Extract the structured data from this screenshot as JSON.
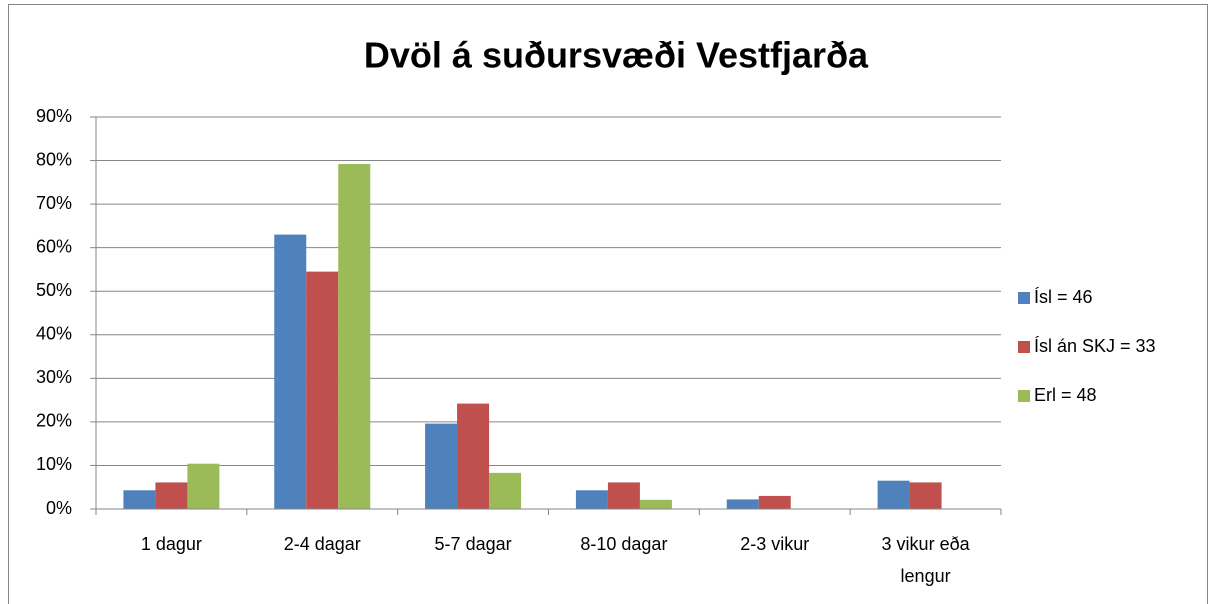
{
  "chart_data": {
    "type": "bar",
    "title": "Dvöl á suðursvæði Vestfjarða",
    "categories": [
      "1 dagur",
      "2-4 dagar",
      "5-7 dagar",
      "8-10 dagar",
      "2-3 vikur",
      "3 vikur eða lengur"
    ],
    "series": [
      {
        "name": "Ísl = 46",
        "color": "#4f81bd",
        "values": [
          4.3,
          63,
          19.6,
          4.3,
          2.2,
          6.5
        ]
      },
      {
        "name": "Ísl án SKJ = 33",
        "color": "#c0504d",
        "values": [
          6.1,
          54.5,
          24.2,
          6.1,
          3.0,
          6.1
        ]
      },
      {
        "name": "Erl = 48",
        "color": "#9bbb59",
        "values": [
          10.4,
          79.2,
          8.3,
          2.1,
          0,
          0
        ]
      }
    ],
    "ylim": [
      0,
      90
    ],
    "yticks": [
      {
        "value": 0,
        "label": "0%"
      },
      {
        "value": 10,
        "label": "10%"
      },
      {
        "value": 20,
        "label": "20%"
      },
      {
        "value": 30,
        "label": "30%"
      },
      {
        "value": 40,
        "label": "40%"
      },
      {
        "value": 50,
        "label": "50%"
      },
      {
        "value": 60,
        "label": "60%"
      },
      {
        "value": 70,
        "label": "70%"
      },
      {
        "value": 80,
        "label": "80%"
      },
      {
        "value": 90,
        "label": "90%"
      }
    ],
    "grid": true,
    "legend": "right"
  }
}
